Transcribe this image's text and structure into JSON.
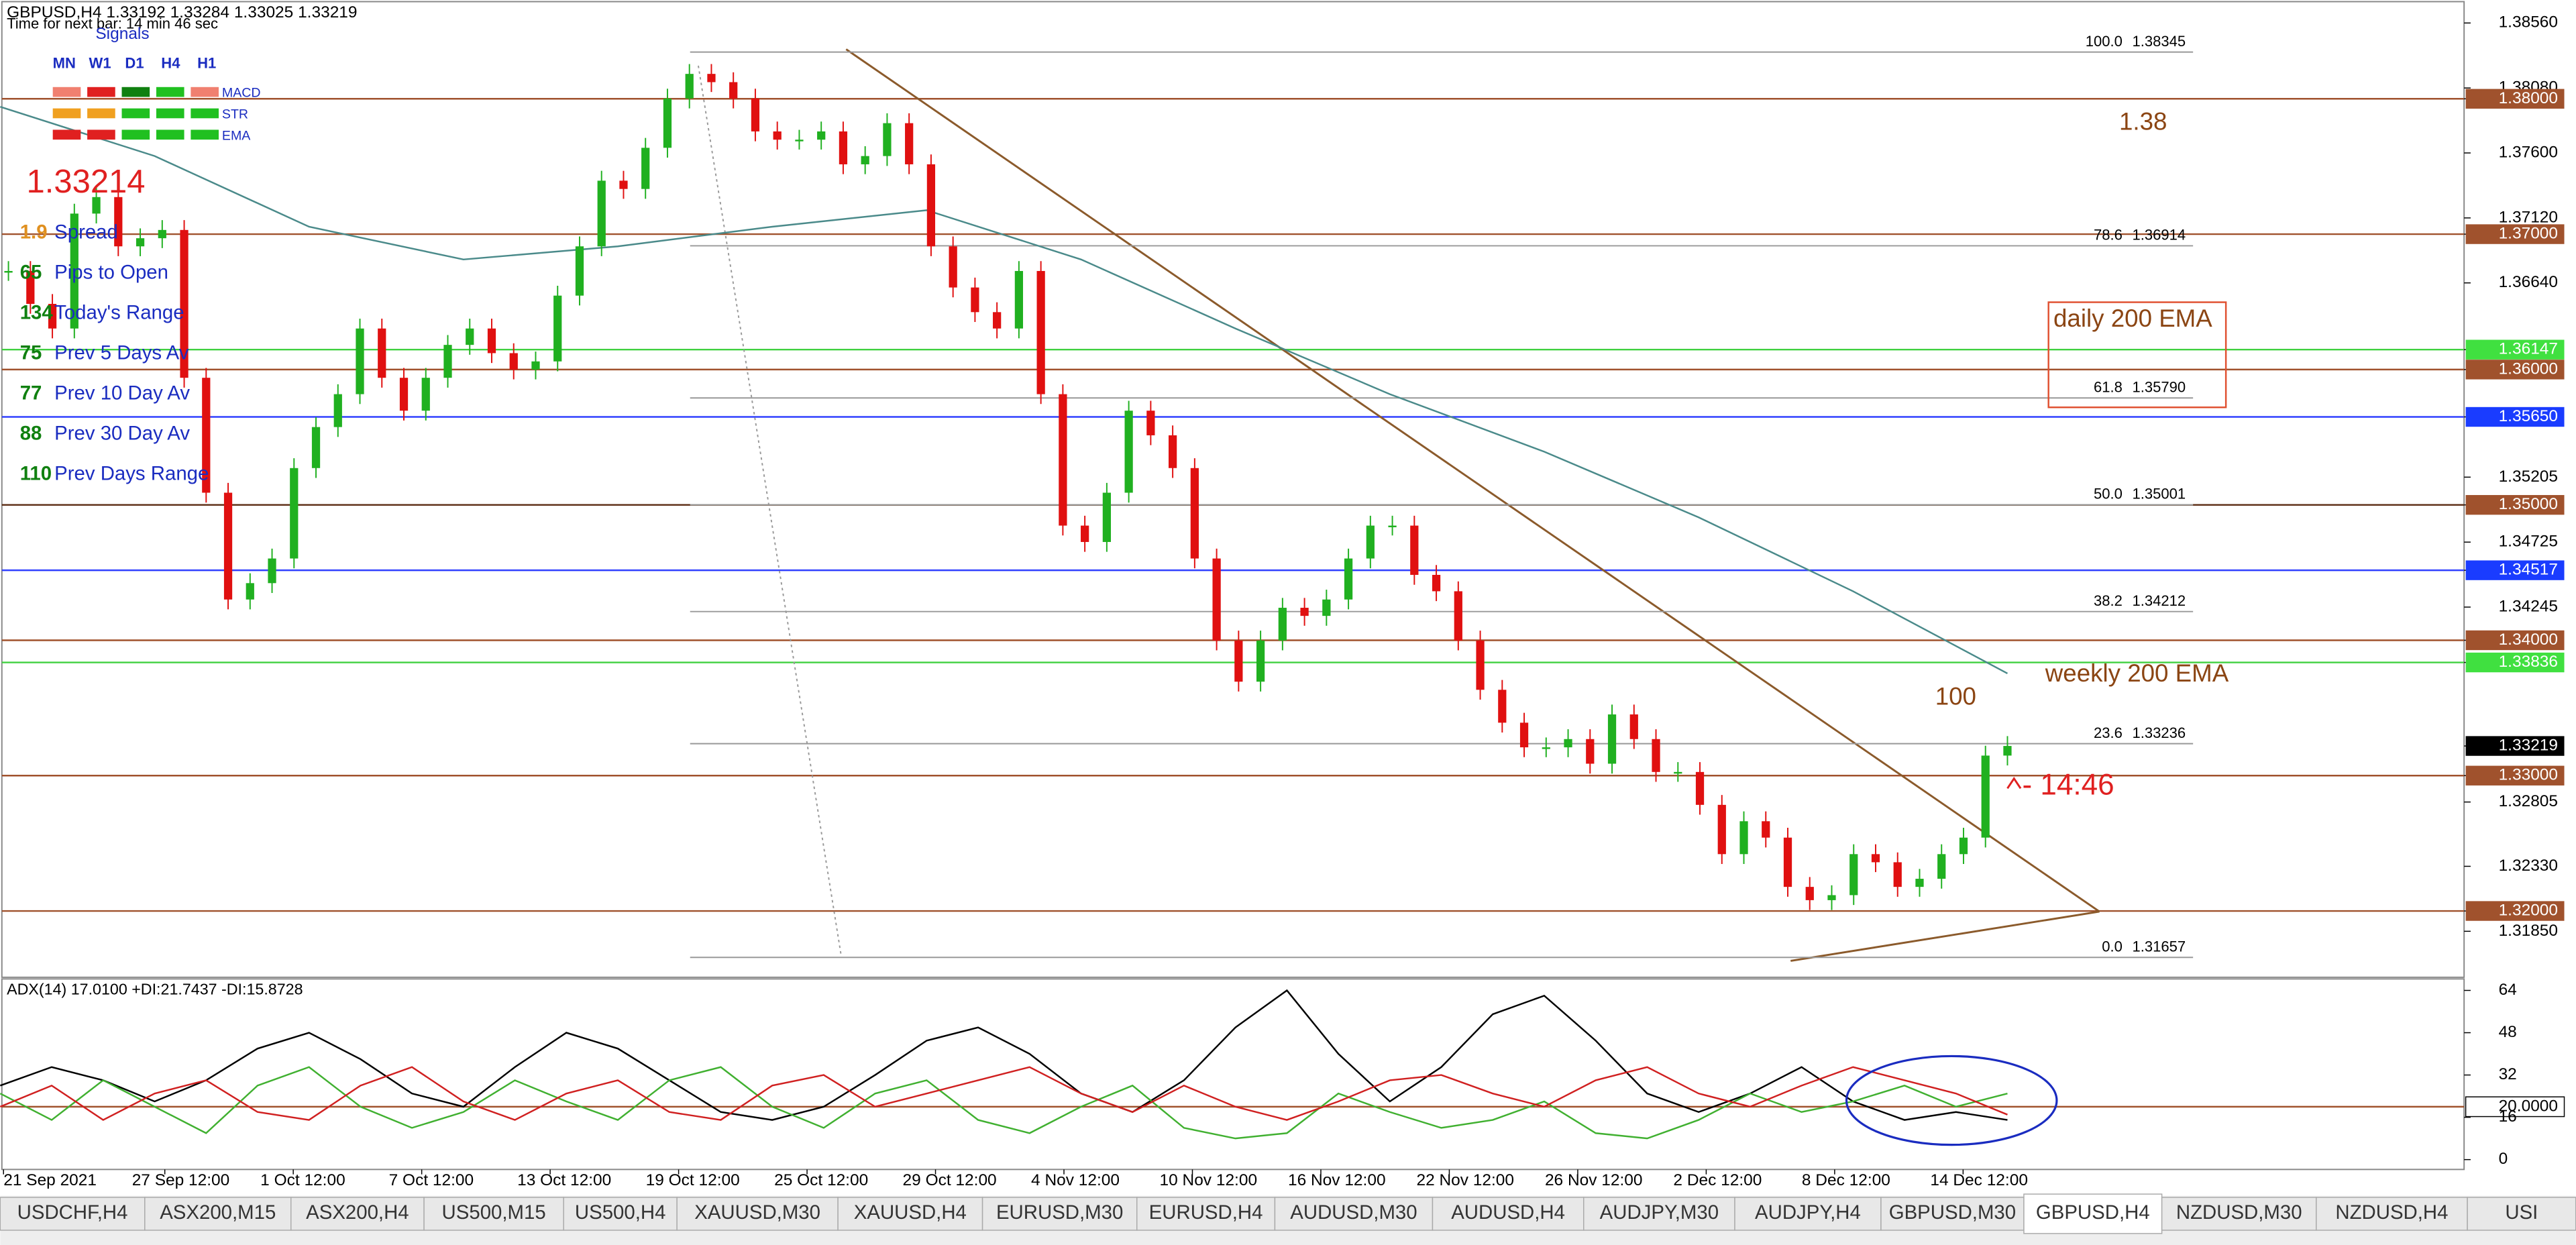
{
  "header": {
    "symbol_line": "GBPUSD,H4  1.33192 1.33284 1.33025 1.33219",
    "timer": "Time for next bar: 14 min 46 sec"
  },
  "signals": {
    "title": "Signals",
    "timeframes": [
      "MN",
      "W1",
      "D1",
      "H4",
      "H1"
    ],
    "indicators": [
      "MACD",
      "STR",
      "EMA"
    ],
    "colors": [
      [
        "#f08070",
        "#e02020",
        "#108010",
        "#20c020",
        "#f08070"
      ],
      [
        "#f0a020",
        "#f0a020",
        "#20c020",
        "#20c020",
        "#20c020"
      ],
      [
        "#e02020",
        "#e02020",
        "#20c020",
        "#20c020",
        "#20c020"
      ]
    ]
  },
  "bid": "1.33214",
  "stats": [
    {
      "value": "1.9",
      "label": "Spread"
    },
    {
      "value": "65",
      "label": "Pips to Open"
    },
    {
      "value": "134",
      "label": "Today's Range"
    },
    {
      "value": "75",
      "label": "Prev 5 Days Av"
    },
    {
      "value": "77",
      "label": "Prev 10 Day Av"
    },
    {
      "value": "88",
      "label": "Prev 30 Day Av"
    },
    {
      "value": "110",
      "label": "Prev Days Range"
    }
  ],
  "price_axis": [
    {
      "value": 1.3856,
      "label": "1.38560",
      "style": "plain"
    },
    {
      "value": 1.3808,
      "label": "1.38080",
      "style": "plain"
    },
    {
      "value": 1.38,
      "label": "1.38000",
      "style": "brown"
    },
    {
      "value": 1.376,
      "label": "1.37600",
      "style": "plain"
    },
    {
      "value": 1.3712,
      "label": "1.37120",
      "style": "plain"
    },
    {
      "value": 1.37,
      "label": "1.37000",
      "style": "brown"
    },
    {
      "value": 1.3664,
      "label": "1.36640",
      "style": "plain"
    },
    {
      "value": 1.36147,
      "label": "1.36147",
      "style": "green"
    },
    {
      "value": 1.36,
      "label": "1.36000",
      "style": "brown"
    },
    {
      "value": 1.3565,
      "label": "1.35650",
      "style": "blue"
    },
    {
      "value": 1.35205,
      "label": "1.35205",
      "style": "plain"
    },
    {
      "value": 1.35,
      "label": "1.35000",
      "style": "brown"
    },
    {
      "value": 1.34725,
      "label": "1.34725",
      "style": "plain"
    },
    {
      "value": 1.34517,
      "label": "1.34517",
      "style": "blue"
    },
    {
      "value": 1.34245,
      "label": "1.34245",
      "style": "plain"
    },
    {
      "value": 1.34,
      "label": "1.34000",
      "style": "brown"
    },
    {
      "value": 1.33836,
      "label": "1.33836",
      "style": "green"
    },
    {
      "value": 1.33219,
      "label": "1.33219",
      "style": "current"
    },
    {
      "value": 1.33,
      "label": "1.33000",
      "style": "brown"
    },
    {
      "value": 1.32805,
      "label": "1.32805",
      "style": "plain"
    },
    {
      "value": 1.3233,
      "label": "1.32330",
      "style": "plain"
    },
    {
      "value": 1.32,
      "label": "1.32000",
      "style": "brown"
    },
    {
      "value": 1.3185,
      "label": "1.31850",
      "style": "plain"
    }
  ],
  "levels": [
    {
      "value": 1.38,
      "color": "#a0522d"
    },
    {
      "value": 1.37,
      "color": "#a0522d"
    },
    {
      "value": 1.36147,
      "color": "#40d040"
    },
    {
      "value": 1.36,
      "color": "#a0522d"
    },
    {
      "value": 1.3565,
      "color": "#3040ff"
    },
    {
      "value": 1.35,
      "color": "#5a2a10"
    },
    {
      "value": 1.34517,
      "color": "#3040ff"
    },
    {
      "value": 1.34,
      "color": "#a0522d"
    },
    {
      "value": 1.33836,
      "color": "#40d040"
    },
    {
      "value": 1.33,
      "color": "#a0522d"
    },
    {
      "value": 1.32,
      "color": "#a0522d"
    }
  ],
  "fib": [
    {
      "ratio": "100.0",
      "price": {
        "value": 1.38345,
        "label": "1.38345"
      }
    },
    {
      "ratio": "78.6",
      "price": {
        "value": 1.36914,
        "label": "1.36914"
      }
    },
    {
      "ratio": "61.8",
      "price": {
        "value": 1.3579,
        "label": "1.35790"
      }
    },
    {
      "ratio": "50.0",
      "price": {
        "value": 1.35001,
        "label": "1.35001"
      }
    },
    {
      "ratio": "38.2",
      "price": {
        "value": 1.34212,
        "label": "1.34212"
      }
    },
    {
      "ratio": "23.6",
      "price": {
        "value": 1.33236,
        "label": "1.33236"
      }
    },
    {
      "ratio": "0.0",
      "price": {
        "value": 1.31657,
        "label": "1.31657"
      }
    }
  ],
  "annotations": {
    "round": "1.38",
    "daily": "daily 200 EMA",
    "weekly": "weekly 200 EMA",
    "pips": "100",
    "timer": "- 14:46"
  },
  "closes": [
    1.36728,
    1.36485,
    1.36303,
    1.37152,
    1.37274,
    1.3691,
    1.3697,
    1.37031,
    1.35939,
    1.3509,
    1.34301,
    1.34422,
    1.34604,
    1.35272,
    1.35575,
    1.35818,
    1.36303,
    1.35939,
    1.35696,
    1.35939,
    1.36182,
    1.36303,
    1.36121,
    1.36,
    1.3606,
    1.36546,
    1.3691,
    1.37395,
    1.37334,
    1.37638,
    1.38002,
    1.38184,
    1.38123,
    1.38002,
    1.37759,
    1.37698,
    1.37698,
    1.37759,
    1.37516,
    1.37577,
    1.3782,
    1.37516,
    1.3691,
    1.36606,
    1.36424,
    1.36303,
    1.36728,
    1.35818,
    1.34847,
    1.34726,
    1.3509,
    1.35696,
    1.35514,
    1.35272,
    1.34604,
    1.33998,
    1.33694,
    1.33998,
    1.3424,
    1.3418,
    1.34301,
    1.34604,
    1.34847,
    1.34847,
    1.34483,
    1.34362,
    1.33998,
    1.33634,
    1.33391,
    1.33209,
    1.33209,
    1.3327,
    1.33088,
    1.33452,
    1.3327,
    1.33027,
    1.33027,
    1.32784,
    1.3242,
    1.32663,
    1.32542,
    1.32178,
    1.3208,
    1.32117,
    1.3242,
    1.3236,
    1.32178,
    1.32238,
    1.3242,
    1.32542,
    1.33148,
    1.33219
  ],
  "ema200": [
    1.37941,
    1.37577,
    1.37055,
    1.36813,
    1.3691,
    1.37055,
    1.37177,
    1.36813,
    1.36303,
    1.35818,
    1.35393,
    1.34908,
    1.34362,
    1.33755
  ],
  "adx": {
    "title": "ADX(14) 17.0100 +DI:21.7437 -DI:15.8728",
    "ylim": [
      0,
      64
    ],
    "yticks": [
      64,
      48,
      32,
      {
        "value": 20,
        "label": "20.0000"
      },
      16,
      0
    ],
    "series": [
      {
        "color": "#000000",
        "values": [
          28,
          35,
          30,
          22,
          30,
          42,
          48,
          38,
          25,
          20,
          35,
          48,
          42,
          30,
          18,
          15,
          20,
          32,
          45,
          50,
          40,
          25,
          18,
          30,
          50,
          64,
          40,
          22,
          35,
          55,
          62,
          45,
          25,
          18,
          25,
          35,
          22,
          15,
          18,
          15
        ]
      },
      {
        "color": "#40b030",
        "values": [
          25,
          15,
          30,
          20,
          10,
          28,
          35,
          20,
          12,
          18,
          30,
          22,
          15,
          30,
          35,
          20,
          12,
          25,
          30,
          15,
          10,
          20,
          28,
          12,
          8,
          10,
          25,
          18,
          12,
          15,
          22,
          10,
          8,
          15,
          25,
          18,
          22,
          28,
          20,
          25
        ]
      },
      {
        "color": "#d02020",
        "values": [
          20,
          28,
          15,
          25,
          30,
          18,
          15,
          28,
          35,
          22,
          15,
          25,
          30,
          18,
          15,
          28,
          32,
          20,
          25,
          30,
          35,
          25,
          18,
          28,
          20,
          15,
          22,
          30,
          32,
          25,
          20,
          30,
          35,
          25,
          20,
          28,
          35,
          30,
          25,
          17
        ]
      }
    ]
  },
  "dates": [
    "21 Sep 2021",
    "27 Sep 12:00",
    "1 Oct 12:00",
    "7 Oct 12:00",
    "13 Oct 12:00",
    "19 Oct 12:00",
    "25 Oct 12:00",
    "29 Oct 12:00",
    "4 Nov 12:00",
    "10 Nov 12:00",
    "16 Nov 12:00",
    "22 Nov 12:00",
    "26 Nov 12:00",
    "2 Dec 12:00",
    "8 Dec 12:00",
    "14 Dec 12:00"
  ],
  "tabs": [
    "USDCHF,H4",
    "ASX200,M15",
    "ASX200,H4",
    "US500,M15",
    "US500,H4",
    "XAUUSD,M30",
    "XAUUSD,H4",
    "EURUSD,M30",
    "EURUSD,H4",
    "AUDUSD,M30",
    "AUDUSD,H4",
    "AUDJPY,M30",
    "AUDJPY,H4",
    "GBPUSD,M30",
    "GBPUSD,H4",
    "NZDUSD,M30",
    "NZDUSD,H4",
    "USI"
  ],
  "active_tab": 14
}
